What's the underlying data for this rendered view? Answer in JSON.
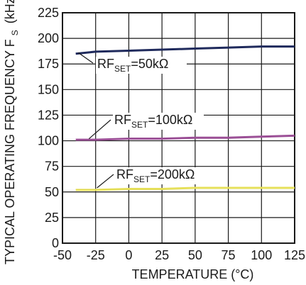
{
  "chart_data": {
    "type": "line",
    "xlabel": "TEMPERATURE (°C)",
    "ylabel": "TYPICAL OPERATING FREQUENCY F",
    "ylabel_sub": "S",
    "ylabel_unit": "(kHz)",
    "xlim": [
      -50,
      125
    ],
    "ylim": [
      0,
      225
    ],
    "x_ticks": [
      "-50",
      "-25",
      "0",
      "25",
      "50",
      "75",
      "100",
      "125"
    ],
    "y_ticks": [
      "0",
      "25",
      "50",
      "75",
      "100",
      "125",
      "150",
      "175",
      "200",
      "225"
    ],
    "grid": true,
    "series": [
      {
        "label_main": "RF",
        "label_sub": "SET",
        "label_rest": "=50kΩ",
        "color": "#1f2a5c",
        "x": [
          -40,
          -25,
          0,
          25,
          50,
          75,
          100,
          125
        ],
        "y": [
          185,
          187,
          188,
          189,
          190,
          191,
          192,
          192
        ]
      },
      {
        "label_main": "RF",
        "label_sub": "SET",
        "label_rest": "=100kΩ",
        "color": "#9b4f96",
        "x": [
          -40,
          -25,
          0,
          25,
          50,
          75,
          100,
          125
        ],
        "y": [
          101,
          101,
          102,
          102,
          103,
          103,
          104,
          105
        ]
      },
      {
        "label_main": "RF",
        "label_sub": "SET",
        "label_rest": "=200kΩ",
        "color": "#e6e05a",
        "x": [
          -40,
          -25,
          0,
          25,
          50,
          75,
          100,
          125
        ],
        "y": [
          52,
          52,
          53,
          53,
          54,
          54,
          54,
          54
        ]
      }
    ]
  }
}
